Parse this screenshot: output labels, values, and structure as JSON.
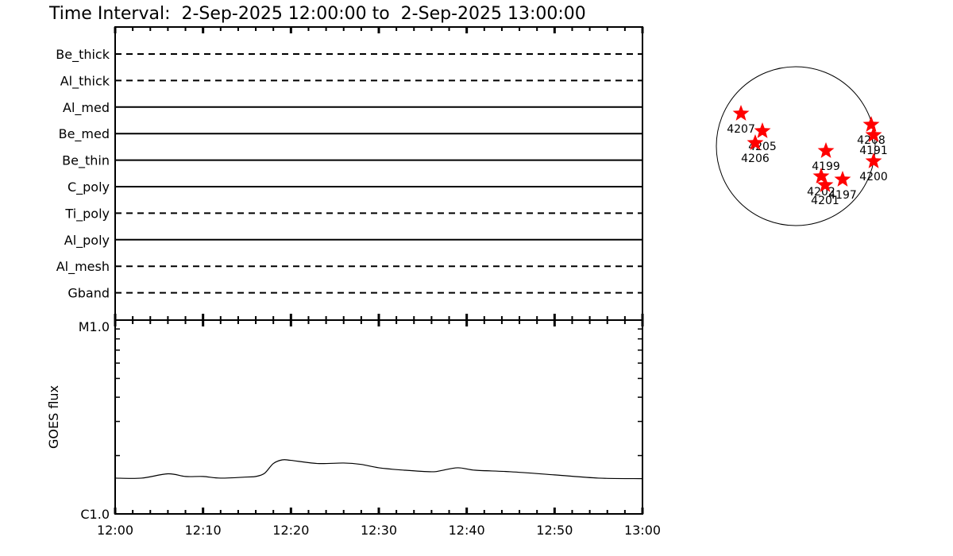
{
  "chart_data": [
    {
      "type": "timeline",
      "title": "Time Interval:  2-Sep-2025 12:00:00 to  2-Sep-2025 13:00:00",
      "x_range": [
        "12:00",
        "13:00"
      ],
      "x_ticks": [
        "12:00",
        "12:10",
        "12:20",
        "12:30",
        "12:40",
        "12:50",
        "13:00"
      ],
      "rows": [
        {
          "name": "Be_thick",
          "style": "dashed"
        },
        {
          "name": "Al_thick",
          "style": "dashed"
        },
        {
          "name": "Al_med",
          "style": "solid"
        },
        {
          "name": "Be_med",
          "style": "solid"
        },
        {
          "name": "Be_thin",
          "style": "solid"
        },
        {
          "name": "C_poly",
          "style": "solid"
        },
        {
          "name": "Ti_poly",
          "style": "dashed"
        },
        {
          "name": "Al_poly",
          "style": "solid"
        },
        {
          "name": "Al_mesh",
          "style": "dashed"
        },
        {
          "name": "Gband",
          "style": "dashed"
        }
      ]
    },
    {
      "type": "line",
      "ylabel": "GOES flux",
      "y_scale": "log",
      "ylim": [
        1e-06,
        1e-05
      ],
      "y_tick_labels": [
        "C1.0",
        "M1.0"
      ],
      "x_ticks": [
        "12:00",
        "12:10",
        "12:20",
        "12:30",
        "12:40",
        "12:50",
        "13:00"
      ],
      "x_minutes": [
        0,
        3,
        6,
        8,
        10,
        12,
        15,
        16,
        17,
        18,
        19,
        20,
        23,
        26,
        28,
        30,
        33,
        36,
        37,
        39,
        41,
        45,
        50,
        55,
        60
      ],
      "values": [
        1.53e-06,
        1.53e-06,
        1.61e-06,
        1.56e-06,
        1.56e-06,
        1.53e-06,
        1.55e-06,
        1.56e-06,
        1.62e-06,
        1.82e-06,
        1.9e-06,
        1.89e-06,
        1.82e-06,
        1.83e-06,
        1.8e-06,
        1.73e-06,
        1.68e-06,
        1.65e-06,
        1.67e-06,
        1.73e-06,
        1.68e-06,
        1.65e-06,
        1.59e-06,
        1.53e-06,
        1.52e-06
      ],
      "color": "#000000"
    },
    {
      "type": "scatter",
      "units": "arcsec",
      "marker": "star",
      "color": "#ff0000",
      "points": [
        {
          "label": "4207",
          "x": -662,
          "y": 394
        },
        {
          "label": "4205",
          "x": -403,
          "y": 182
        },
        {
          "label": "4206",
          "x": -490,
          "y": 38
        },
        {
          "label": "4199",
          "x": 365,
          "y": -58
        },
        {
          "label": "4202",
          "x": 307,
          "y": -365
        },
        {
          "label": "4201",
          "x": 355,
          "y": -470
        },
        {
          "label": "4197",
          "x": 566,
          "y": -403
        },
        {
          "label": "4208",
          "x": 912,
          "y": 259
        },
        {
          "label": "4191",
          "x": 941,
          "y": 134
        },
        {
          "label": "4200",
          "x": 941,
          "y": -182
        }
      ]
    }
  ]
}
